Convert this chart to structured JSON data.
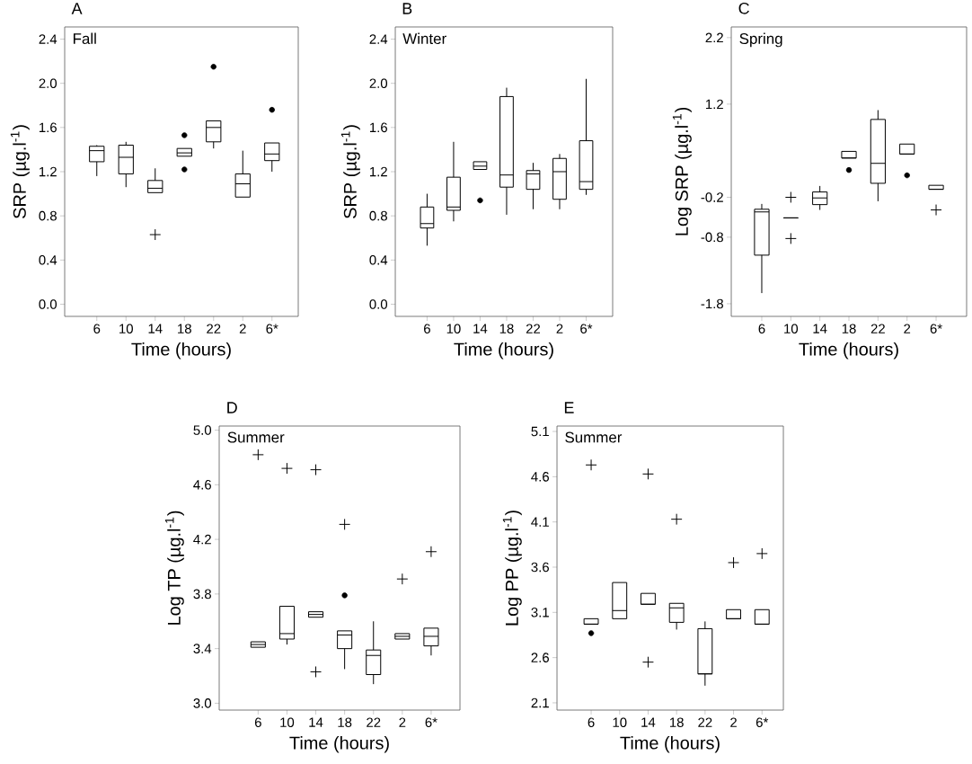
{
  "chart_data": [
    {
      "type": "box",
      "title": "A",
      "subtitle": "Fall",
      "xlabel": "Time (hours)",
      "ylabel": "SRP (µg.l$^{-1}$)",
      "categories": [
        "6",
        "10",
        "14",
        "18",
        "22",
        "2",
        "6*"
      ],
      "ylim": [
        -0.11,
        2.51
      ],
      "yticks": [
        {
          "value": 0,
          "label": "0.0"
        },
        0.4,
        0.8,
        1.2,
        1.6,
        {
          "value": 2,
          "label": "2.0"
        },
        2.4
      ],
      "boxes": [
        {
          "low": 1.16,
          "q1": 1.29,
          "median": 1.39,
          "q3": 1.43,
          "high": 1.44
        },
        {
          "low": 1.06,
          "q1": 1.18,
          "median": 1.33,
          "q3": 1.44,
          "high": 1.47
        },
        {
          "low": 1.01,
          "q1": 1.01,
          "median": 1.05,
          "q3": 1.12,
          "high": 1.23
        },
        {
          "low": 1.34,
          "q1": 1.34,
          "median": 1.37,
          "q3": 1.41,
          "high": 1.41,
          "outliers": [
            1.53,
            1.22
          ]
        },
        {
          "low": 1.41,
          "q1": 1.47,
          "median": 1.6,
          "q3": 1.66,
          "high": 1.66,
          "outliers": [
            2.15
          ]
        },
        {
          "low": 0.97,
          "q1": 0.97,
          "median": 1.09,
          "q3": 1.18,
          "high": 1.39
        },
        {
          "low": 1.2,
          "q1": 1.3,
          "median": 1.36,
          "q3": 1.46,
          "high": 1.46,
          "outliers": [
            1.76
          ]
        }
      ],
      "series": [
        {
          "type": "scatter",
          "marker": "cross",
          "color": "#000000",
          "x": [
            "14"
          ],
          "values": [
            0.63
          ]
        }
      ]
    },
    {
      "type": "box",
      "title": "B",
      "subtitle": "Winter",
      "xlabel": "Time (hours)",
      "ylabel": "SRP (µg.l$^{-1}$)",
      "categories": [
        "6",
        "10",
        "14",
        "18",
        "22",
        "2",
        "6*"
      ],
      "ylim": [
        -0.11,
        2.51
      ],
      "yticks": [
        {
          "value": 0,
          "label": "0.0"
        },
        0.4,
        0.8,
        1.2,
        1.6,
        {
          "value": 2,
          "label": "2.0"
        },
        2.4
      ],
      "boxes": [
        {
          "low": 0.53,
          "q1": 0.69,
          "median": 0.73,
          "q3": 0.88,
          "high": 1.0
        },
        {
          "low": 0.75,
          "q1": 0.85,
          "median": 0.88,
          "q3": 1.15,
          "high": 1.47
        },
        {
          "low": 1.22,
          "q1": 1.22,
          "median": 1.25,
          "q3": 1.29,
          "high": 1.29,
          "outliers": [
            0.94
          ]
        },
        {
          "low": 0.81,
          "q1": 1.06,
          "median": 1.17,
          "q3": 1.88,
          "high": 1.96
        },
        {
          "low": 0.86,
          "q1": 1.04,
          "median": 1.18,
          "q3": 1.21,
          "high": 1.28
        },
        {
          "low": 0.86,
          "q1": 0.95,
          "median": 1.2,
          "q3": 1.32,
          "high": 1.36
        },
        {
          "low": 0.99,
          "q1": 1.04,
          "median": 1.11,
          "q3": 1.48,
          "high": 2.04
        }
      ]
    },
    {
      "type": "box",
      "title": "C",
      "subtitle": "Spring",
      "xlabel": "Time (hours)",
      "ylabel": "Log SRP (µg.l$^{-1}$)",
      "categories": [
        "6",
        "10",
        "14",
        "18",
        "22",
        "2",
        "6*"
      ],
      "ylim": [
        -1.99,
        2.36
      ],
      "yticks": [
        -1.8,
        -0.8,
        -0.2,
        1.2,
        2.2
      ],
      "boxes": [
        {
          "low": -1.64,
          "q1": -1.07,
          "median": -0.42,
          "q3": -0.38,
          "high": -0.3
        },
        {
          "low": -0.51,
          "q1": -0.51,
          "median": -0.51,
          "q3": -0.51,
          "high": -0.51
        },
        {
          "low": -0.39,
          "q1": -0.31,
          "median": -0.21,
          "q3": -0.12,
          "high": -0.03
        },
        {
          "low": 0.39,
          "q1": 0.39,
          "median": 0.39,
          "q3": 0.49,
          "high": 0.49,
          "outliers": [
            0.21
          ]
        },
        {
          "low": -0.26,
          "q1": 0.01,
          "median": 0.31,
          "q3": 0.97,
          "high": 1.11
        },
        {
          "low": 0.45,
          "q1": 0.45,
          "median": 0.45,
          "q3": 0.6,
          "high": 0.6,
          "outliers": [
            0.13
          ]
        },
        {
          "low": -0.08,
          "q1": -0.08,
          "median": -0.08,
          "q3": -0.02,
          "high": -0.02
        }
      ],
      "series": [
        {
          "type": "scatter",
          "marker": "cross",
          "color": "#000000",
          "x": [
            "10",
            "10",
            "6*"
          ],
          "values": [
            -0.2,
            -0.82,
            -0.39
          ]
        }
      ]
    },
    {
      "type": "box",
      "title": "D",
      "subtitle": "Summer",
      "xlabel": "Time (hours)",
      "ylabel": "Log TP (µg.l$^{-1}$)",
      "categories": [
        "6",
        "10",
        "14",
        "18",
        "22",
        "2",
        "6*"
      ],
      "ylim": [
        2.95,
        5.03
      ],
      "yticks": [
        {
          "value": 3,
          "label": "3.0"
        },
        3.4,
        3.8,
        4.2,
        4.6,
        {
          "value": 5,
          "label": "5.0"
        }
      ],
      "boxes": [
        {
          "low": 3.41,
          "q1": 3.41,
          "median": 3.43,
          "q3": 3.45,
          "high": 3.45
        },
        {
          "low": 3.43,
          "q1": 3.47,
          "median": 3.51,
          "q3": 3.71,
          "high": 3.71
        },
        {
          "low": 3.63,
          "q1": 3.63,
          "median": 3.65,
          "q3": 3.67,
          "high": 3.67
        },
        {
          "low": 3.25,
          "q1": 3.4,
          "median": 3.5,
          "q3": 3.53,
          "high": 3.53,
          "outliers": [
            3.79
          ]
        },
        {
          "low": 3.14,
          "q1": 3.21,
          "median": 3.35,
          "q3": 3.39,
          "high": 3.6
        },
        {
          "low": 3.47,
          "q1": 3.47,
          "median": 3.49,
          "q3": 3.51,
          "high": 3.51
        },
        {
          "low": 3.35,
          "q1": 3.42,
          "median": 3.49,
          "q3": 3.55,
          "high": 3.55
        }
      ],
      "series": [
        {
          "type": "scatter",
          "marker": "cross",
          "color": "#000000",
          "x": [
            "6",
            "10",
            "14",
            "14",
            "18",
            "2",
            "6*"
          ],
          "values": [
            4.82,
            4.72,
            4.71,
            3.23,
            4.31,
            3.91,
            4.11
          ]
        }
      ]
    },
    {
      "type": "box",
      "title": "E",
      "subtitle": "Summer",
      "xlabel": "Time (hours)",
      "ylabel": "Log PP (µg.l$^{-1}$)",
      "categories": [
        "6",
        "10",
        "14",
        "18",
        "22",
        "2",
        "6*"
      ],
      "ylim": [
        2.02,
        5.16
      ],
      "yticks": [
        2.1,
        2.6,
        3.1,
        3.6,
        4.1,
        4.6,
        5.1
      ],
      "boxes": [
        {
          "low": 2.97,
          "q1": 2.97,
          "median": 2.97,
          "q3": 3.03,
          "high": 3.03,
          "outliers": [
            2.87
          ]
        },
        {
          "low": 3.03,
          "q1": 3.03,
          "median": 3.12,
          "q3": 3.43,
          "high": 3.43
        },
        {
          "low": 3.19,
          "q1": 3.19,
          "median": 3.19,
          "q3": 3.31,
          "high": 3.31
        },
        {
          "low": 2.91,
          "q1": 2.99,
          "median": 3.15,
          "q3": 3.2,
          "high": 3.2
        },
        {
          "low": 2.29,
          "q1": 2.42,
          "median": 2.42,
          "q3": 2.92,
          "high": 3.0
        },
        {
          "low": 3.03,
          "q1": 3.03,
          "median": 3.03,
          "q3": 3.13,
          "high": 3.13
        },
        {
          "low": 2.97,
          "q1": 2.97,
          "median": 2.97,
          "q3": 3.13,
          "high": 3.13
        }
      ],
      "series": [
        {
          "type": "scatter",
          "marker": "cross",
          "color": "#000000",
          "x": [
            "6",
            "14",
            "14",
            "18",
            "2",
            "6*"
          ],
          "values": [
            4.73,
            4.63,
            2.55,
            4.13,
            3.65,
            3.75
          ]
        }
      ]
    }
  ]
}
